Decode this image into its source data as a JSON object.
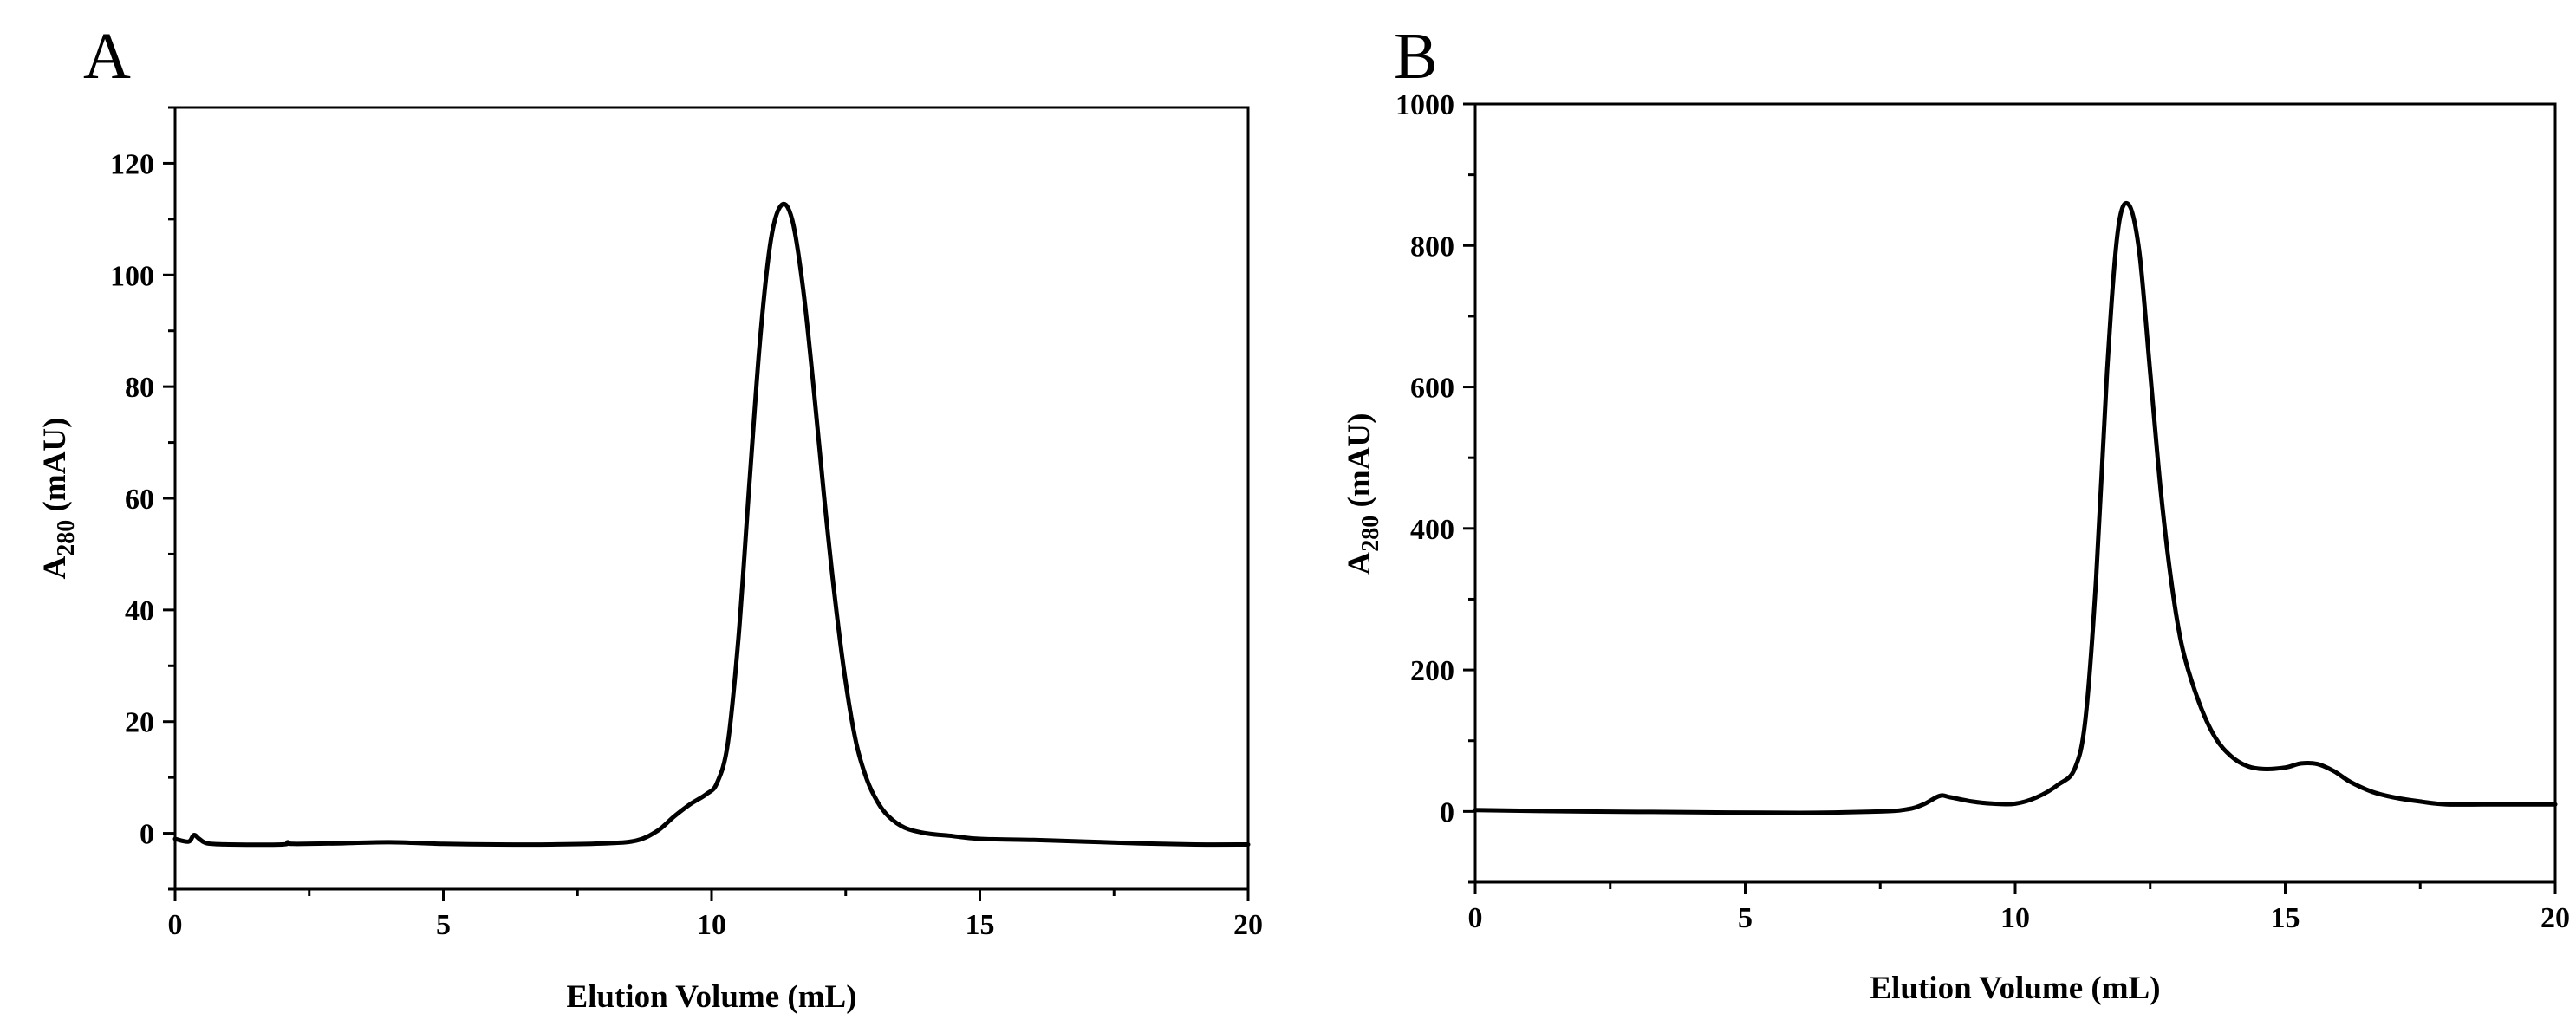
{
  "chart_data": [
    {
      "panel": "A",
      "type": "line",
      "title": "",
      "xlabel": "Elution Volume (mL)",
      "ylabel": {
        "main": "A",
        "sub": "280",
        "unit": " (mAU)"
      },
      "xlim": [
        0,
        20
      ],
      "ylim": [
        -10,
        130
      ],
      "xticks": [
        0,
        5,
        10,
        15,
        20
      ],
      "xtick_labels": [
        "0",
        "5",
        "10",
        "15",
        "20"
      ],
      "xminor": [
        2.5,
        7.5,
        12.5,
        17.5
      ],
      "yticks": [
        0,
        20,
        40,
        60,
        80,
        100,
        120
      ],
      "ytick_labels": [
        "0",
        "20",
        "40",
        "60",
        "80",
        "100",
        "120"
      ],
      "yminor": [
        -10,
        10,
        30,
        50,
        70,
        90,
        110,
        130
      ],
      "grid": false,
      "series": [
        {
          "name": "A280",
          "x": [
            0.0,
            0.25,
            0.35,
            0.45,
            0.6,
            1.0,
            2.0,
            2.1,
            2.2,
            3.0,
            4.0,
            5.0,
            6.0,
            7.0,
            8.0,
            8.6,
            9.0,
            9.3,
            9.6,
            9.9,
            10.1,
            10.3,
            10.5,
            10.7,
            10.9,
            11.1,
            11.3,
            11.5,
            11.7,
            11.9,
            12.1,
            12.3,
            12.5,
            12.7,
            12.9,
            13.1,
            13.3,
            13.6,
            14.0,
            14.5,
            15.0,
            16.0,
            17.0,
            18.0,
            19.0,
            20.0
          ],
          "y": [
            -1.0,
            -1.5,
            -0.3,
            -1.0,
            -1.8,
            -2.0,
            -2.0,
            -1.6,
            -1.9,
            -1.8,
            -1.6,
            -1.9,
            -2.0,
            -2.0,
            -1.8,
            -1.3,
            0.5,
            3.0,
            5.2,
            7.0,
            9.0,
            16.0,
            35.0,
            62.0,
            88.0,
            106.0,
            112.5,
            110.0,
            98.0,
            80.0,
            60.0,
            42.0,
            27.0,
            16.0,
            9.5,
            5.5,
            3.0,
            1.0,
            0.0,
            -0.5,
            -1.0,
            -1.2,
            -1.5,
            -1.8,
            -2.0,
            -2.0
          ]
        }
      ]
    },
    {
      "panel": "B",
      "type": "line",
      "title": "",
      "xlabel": "Elution Volume (mL)",
      "ylabel": {
        "main": "A",
        "sub": "280",
        "unit": " (mAU)"
      },
      "xlim": [
        0,
        20
      ],
      "ylim": [
        -100,
        1000
      ],
      "xticks": [
        0,
        5,
        10,
        15,
        20
      ],
      "xtick_labels": [
        "0",
        "5",
        "10",
        "15",
        "20"
      ],
      "xminor": [
        2.5,
        7.5,
        12.5,
        17.5
      ],
      "yticks": [
        0,
        200,
        400,
        600,
        800,
        1000
      ],
      "ytick_labels": [
        "0",
        "200",
        "400",
        "600",
        "800",
        "1000"
      ],
      "yminor": [
        -100,
        100,
        300,
        500,
        700,
        900
      ],
      "grid": false,
      "series": [
        {
          "name": "A280",
          "x": [
            0.0,
            2.0,
            4.0,
            6.0,
            7.5,
            8.0,
            8.3,
            8.6,
            8.8,
            9.2,
            9.6,
            10.0,
            10.4,
            10.8,
            11.1,
            11.3,
            11.5,
            11.7,
            11.9,
            12.1,
            12.3,
            12.5,
            12.7,
            12.9,
            13.1,
            13.4,
            13.7,
            14.0,
            14.3,
            14.6,
            15.0,
            15.3,
            15.6,
            15.9,
            16.2,
            16.6,
            17.0,
            17.5,
            18.0,
            19.0,
            20.0
          ],
          "y": [
            2.0,
            0.0,
            -1.0,
            -2.0,
            0.0,
            3.0,
            10.0,
            22.0,
            20.0,
            14.0,
            11.0,
            11.0,
            20.0,
            38.0,
            60.0,
            130.0,
            330.0,
            620.0,
            820.0,
            858.0,
            790.0,
            620.0,
            450.0,
            320.0,
            230.0,
            155.0,
            105.0,
            78.0,
            64.0,
            60.0,
            62.0,
            68.0,
            67.0,
            57.0,
            42.0,
            28.0,
            20.0,
            14.0,
            10.0,
            10.0,
            10.0
          ]
        }
      ]
    }
  ]
}
